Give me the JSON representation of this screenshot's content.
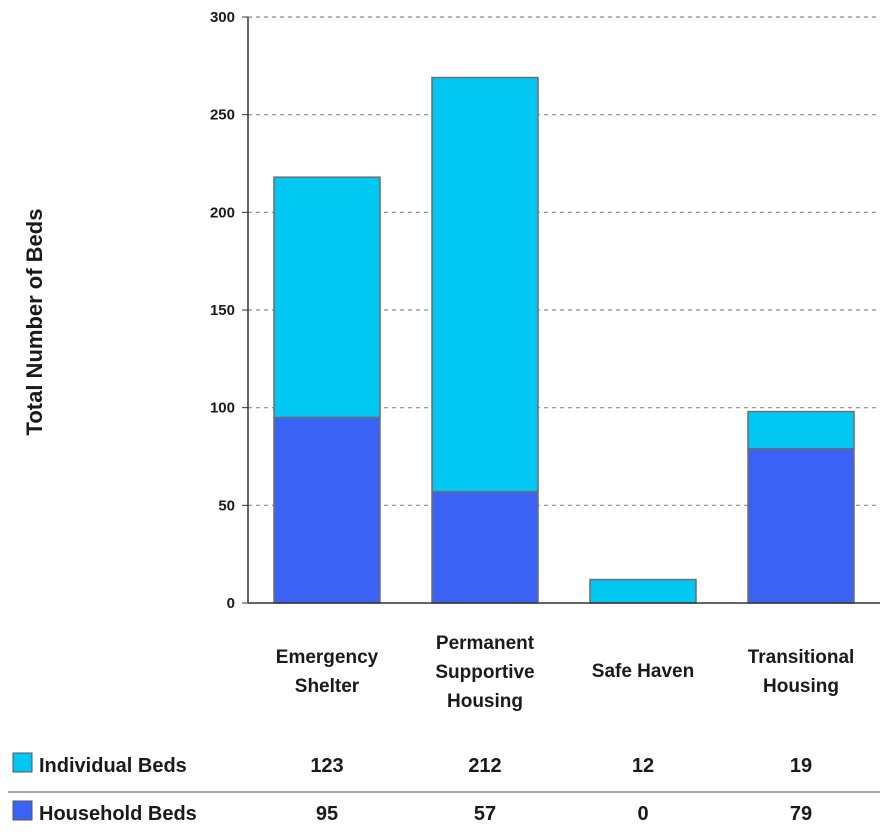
{
  "chart_data": {
    "type": "bar",
    "stacked": true,
    "categories": [
      [
        "Emergency",
        "Shelter"
      ],
      [
        "Permanent",
        "Supportive",
        "Housing"
      ],
      [
        "Safe Haven"
      ],
      [
        "Transitional",
        "Housing"
      ]
    ],
    "series": [
      {
        "name": "Household Beds",
        "values": [
          95,
          57,
          0,
          79
        ],
        "color": "#3a63f5"
      },
      {
        "name": "Individual Beds",
        "values": [
          123,
          212,
          12,
          19
        ],
        "color": "#00c8f2"
      }
    ],
    "title": "",
    "xlabel": "",
    "ylabel": "Total Number of Beds",
    "ylim": [
      0,
      300
    ],
    "yticks": [
      0,
      50,
      100,
      150,
      200,
      250,
      300
    ],
    "grid": true,
    "legend": "data-table-below",
    "data_table_order": [
      "Individual Beds",
      "Household Beds"
    ]
  }
}
